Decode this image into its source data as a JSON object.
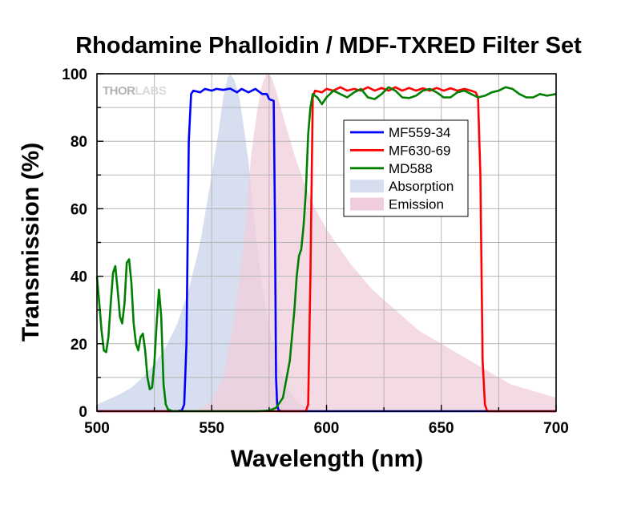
{
  "chart_data": {
    "type": "line",
    "title": "Rhodamine Phalloidin / MDF-TXRED Filter Set",
    "xlabel": "Wavelength (nm)",
    "ylabel": "Transmission (%)",
    "xlim": [
      500,
      700
    ],
    "ylim": [
      0,
      100
    ],
    "x_ticks": [
      500,
      550,
      600,
      650,
      700
    ],
    "y_ticks": [
      0,
      20,
      40,
      60,
      80,
      100
    ],
    "grid": true,
    "legend_position": "upper-right",
    "watermark": {
      "part1": "THOR",
      "part2": "LABS"
    },
    "series": [
      {
        "name": "MF559-34",
        "kind": "line",
        "color": "#0000ff",
        "points": [
          [
            500,
            0
          ],
          [
            535,
            0
          ],
          [
            537,
            0.3
          ],
          [
            538,
            2
          ],
          [
            539,
            20
          ],
          [
            540,
            80
          ],
          [
            541,
            94
          ],
          [
            542,
            95
          ],
          [
            545,
            94.5
          ],
          [
            547,
            95.5
          ],
          [
            550,
            95
          ],
          [
            552,
            95.5
          ],
          [
            555,
            95.2
          ],
          [
            558,
            95.6
          ],
          [
            561,
            94.5
          ],
          [
            563,
            95.5
          ],
          [
            566,
            94.5
          ],
          [
            569,
            95.5
          ],
          [
            572,
            94
          ],
          [
            574,
            94
          ],
          [
            575,
            92.5
          ],
          [
            576,
            92.2
          ],
          [
            577,
            92
          ],
          [
            577.5,
            60
          ],
          [
            578,
            10
          ],
          [
            578.5,
            2
          ],
          [
            579,
            0.5
          ],
          [
            580,
            0
          ],
          [
            700,
            0
          ]
        ]
      },
      {
        "name": "MF630-69",
        "kind": "line",
        "color": "#ff0000",
        "points": [
          [
            500,
            0
          ],
          [
            591,
            0
          ],
          [
            592,
            2
          ],
          [
            593,
            40
          ],
          [
            594,
            93
          ],
          [
            595,
            95
          ],
          [
            598,
            94.5
          ],
          [
            600,
            95.5
          ],
          [
            603,
            95
          ],
          [
            606,
            96
          ],
          [
            609,
            95
          ],
          [
            612,
            95.5
          ],
          [
            615,
            95
          ],
          [
            618,
            96
          ],
          [
            621,
            95
          ],
          [
            624,
            95.8
          ],
          [
            627,
            95
          ],
          [
            630,
            96
          ],
          [
            633,
            95
          ],
          [
            636,
            95.8
          ],
          [
            639,
            95
          ],
          [
            642,
            95.7
          ],
          [
            645,
            95
          ],
          [
            648,
            95.8
          ],
          [
            651,
            95
          ],
          [
            654,
            95.7
          ],
          [
            657,
            95
          ],
          [
            660,
            95.5
          ],
          [
            663,
            95
          ],
          [
            665,
            94.5
          ],
          [
            666,
            93
          ],
          [
            667,
            70
          ],
          [
            668,
            15
          ],
          [
            669,
            2
          ],
          [
            670,
            0
          ],
          [
            700,
            0
          ]
        ]
      },
      {
        "name": "MD588",
        "kind": "line",
        "color": "#008000",
        "points": [
          [
            500,
            40
          ],
          [
            501,
            32
          ],
          [
            502,
            24
          ],
          [
            503,
            18
          ],
          [
            504,
            17.5
          ],
          [
            505,
            22
          ],
          [
            506,
            32
          ],
          [
            507,
            41
          ],
          [
            508,
            43
          ],
          [
            509,
            36
          ],
          [
            510,
            28
          ],
          [
            511,
            26
          ],
          [
            512,
            32
          ],
          [
            513,
            44
          ],
          [
            514,
            45
          ],
          [
            515,
            38
          ],
          [
            516,
            26
          ],
          [
            517,
            20
          ],
          [
            518,
            18
          ],
          [
            519,
            22
          ],
          [
            520,
            23
          ],
          [
            521,
            18
          ],
          [
            522,
            10
          ],
          [
            523,
            6.5
          ],
          [
            524,
            7
          ],
          [
            525,
            14
          ],
          [
            526,
            26
          ],
          [
            527,
            36
          ],
          [
            528,
            28
          ],
          [
            529,
            8
          ],
          [
            530,
            2
          ],
          [
            531,
            0.5
          ],
          [
            533,
            0
          ],
          [
            570,
            0
          ],
          [
            575,
            0.2
          ],
          [
            578,
            1
          ],
          [
            581,
            4
          ],
          [
            584,
            15
          ],
          [
            586,
            30
          ],
          [
            587,
            40
          ],
          [
            588,
            46
          ],
          [
            589,
            48
          ],
          [
            590,
            55
          ],
          [
            591,
            65
          ],
          [
            592,
            82
          ],
          [
            593,
            90
          ],
          [
            594,
            94
          ],
          [
            596,
            93
          ],
          [
            598,
            91
          ],
          [
            600,
            93
          ],
          [
            603,
            95
          ],
          [
            606,
            94
          ],
          [
            609,
            93
          ],
          [
            612,
            94.5
          ],
          [
            615,
            95.5
          ],
          [
            618,
            93
          ],
          [
            621,
            92.5
          ],
          [
            624,
            94
          ],
          [
            627,
            96
          ],
          [
            630,
            95
          ],
          [
            633,
            93
          ],
          [
            636,
            92.8
          ],
          [
            639,
            93.5
          ],
          [
            642,
            95
          ],
          [
            645,
            95.5
          ],
          [
            648,
            94.5
          ],
          [
            651,
            93
          ],
          [
            654,
            93
          ],
          [
            657,
            94.5
          ],
          [
            660,
            95
          ],
          [
            663,
            94
          ],
          [
            666,
            93
          ],
          [
            669,
            93.5
          ],
          [
            672,
            94.5
          ],
          [
            675,
            95
          ],
          [
            678,
            96
          ],
          [
            681,
            95.5
          ],
          [
            684,
            94
          ],
          [
            687,
            93
          ],
          [
            690,
            93
          ],
          [
            693,
            94
          ],
          [
            696,
            93.5
          ],
          [
            700,
            94
          ]
        ]
      },
      {
        "name": "Absorption",
        "kind": "area",
        "color": "#d6def0",
        "points": [
          [
            500,
            0
          ],
          [
            500,
            2
          ],
          [
            505,
            3.5
          ],
          [
            510,
            5
          ],
          [
            515,
            7
          ],
          [
            520,
            10
          ],
          [
            525,
            14
          ],
          [
            530,
            19
          ],
          [
            535,
            26
          ],
          [
            540,
            36
          ],
          [
            545,
            50
          ],
          [
            550,
            70
          ],
          [
            553,
            83
          ],
          [
            555,
            93
          ],
          [
            557,
            99
          ],
          [
            558,
            100
          ],
          [
            560,
            98
          ],
          [
            562,
            93
          ],
          [
            564,
            84
          ],
          [
            566,
            74
          ],
          [
            568,
            60
          ],
          [
            570,
            48
          ],
          [
            572,
            37
          ],
          [
            575,
            25
          ],
          [
            578,
            16
          ],
          [
            581,
            10
          ],
          [
            584,
            6
          ],
          [
            587,
            3
          ],
          [
            590,
            1.5
          ],
          [
            593,
            0.5
          ],
          [
            596,
            0.2
          ],
          [
            600,
            0
          ],
          [
            700,
            0
          ]
        ]
      },
      {
        "name": "Emission",
        "kind": "area",
        "color": "#f0cddc",
        "points": [
          [
            540,
            0
          ],
          [
            545,
            0.5
          ],
          [
            550,
            3
          ],
          [
            555,
            10
          ],
          [
            560,
            28
          ],
          [
            564,
            50
          ],
          [
            567,
            75
          ],
          [
            570,
            90
          ],
          [
            572,
            97
          ],
          [
            574,
            100
          ],
          [
            576,
            99
          ],
          [
            578,
            95
          ],
          [
            580,
            90
          ],
          [
            583,
            83
          ],
          [
            586,
            76
          ],
          [
            590,
            68
          ],
          [
            595,
            60
          ],
          [
            600,
            54
          ],
          [
            605,
            49
          ],
          [
            610,
            44
          ],
          [
            615,
            40
          ],
          [
            620,
            36
          ],
          [
            625,
            33
          ],
          [
            630,
            30
          ],
          [
            635,
            27
          ],
          [
            640,
            24
          ],
          [
            645,
            22
          ],
          [
            650,
            20
          ],
          [
            655,
            18
          ],
          [
            660,
            16
          ],
          [
            665,
            14
          ],
          [
            670,
            12
          ],
          [
            675,
            10
          ],
          [
            680,
            8
          ],
          [
            685,
            7
          ],
          [
            690,
            6
          ],
          [
            695,
            5
          ],
          [
            700,
            4
          ],
          [
            700,
            0
          ]
        ]
      }
    ]
  }
}
